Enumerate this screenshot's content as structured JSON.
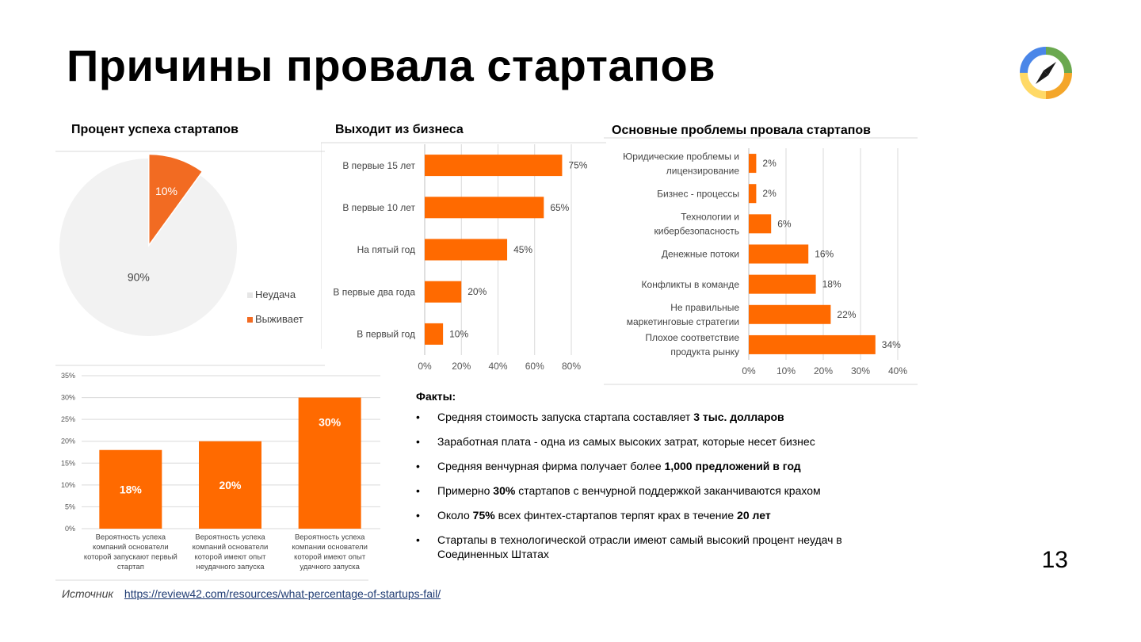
{
  "slide": {
    "title": "Причины провала стартапов",
    "page_number": "13",
    "source_label": "Источник",
    "source_url": "https://review42.com/resources/what-percentage-of-startups-fail/"
  },
  "chart_data": [
    {
      "id": "success",
      "type": "pie",
      "title": "Процент успеха стартапов",
      "slices": [
        {
          "name": "Неудача",
          "value": 90,
          "label": "90%",
          "color": "#f2f2f2"
        },
        {
          "name": "Выживает",
          "value": 10,
          "label": "10%",
          "color": "#f26b22"
        }
      ],
      "legend": "right"
    },
    {
      "id": "exit",
      "type": "bar",
      "orientation": "horizontal",
      "title": "Выходит из бизнеса",
      "categories": [
        "В первые 15 лет",
        "В первые 10 лет",
        "На пятый год",
        "В первые два года",
        "В первый год"
      ],
      "values": [
        75,
        65,
        45,
        20,
        10
      ],
      "labels": [
        "75%",
        "65%",
        "45%",
        "20%",
        "10%"
      ],
      "xlim": [
        0,
        80
      ],
      "xticks": [
        "0%",
        "20%",
        "40%",
        "60%",
        "80%"
      ],
      "grid": true,
      "color": "#ff6a00"
    },
    {
      "id": "problems",
      "type": "bar",
      "orientation": "horizontal",
      "title": "Основные проблемы провала стартапов",
      "categories": [
        [
          "Юридические проблемы и",
          "лицензирование"
        ],
        [
          "Бизнес - процессы"
        ],
        [
          "Технологии и",
          "кибербезопасность"
        ],
        [
          "Денежные потоки"
        ],
        [
          "Конфликты в команде"
        ],
        [
          "Не правильные",
          "маркетинговые стратегии"
        ],
        [
          "Плохое соответствие",
          "продукта рынку"
        ]
      ],
      "values": [
        2,
        2,
        6,
        16,
        18,
        22,
        34
      ],
      "labels": [
        "2%",
        "2%",
        "6%",
        "16%",
        "18%",
        "22%",
        "34%"
      ],
      "xlim": [
        0,
        40
      ],
      "xticks": [
        "0%",
        "10%",
        "20%",
        "30%",
        "40%"
      ],
      "grid": true,
      "color": "#ff6a00"
    },
    {
      "id": "founders",
      "type": "bar",
      "orientation": "vertical",
      "categories": [
        [
          "Вероятность успеха",
          "компаний основатели",
          "которой запускают первый",
          "стартап"
        ],
        [
          "Вероятность успеха",
          "компаний основатели",
          "которой имеют опыт",
          "неудачного запуска"
        ],
        [
          "Вероятность успеха",
          "компании основатели",
          "которой имеют опыт",
          "удачного запуска"
        ]
      ],
      "values": [
        18,
        20,
        30
      ],
      "labels": [
        "18%",
        "20%",
        "30%"
      ],
      "ylim": [
        0,
        35
      ],
      "yticks": [
        "0%",
        "5%",
        "10%",
        "15%",
        "20%",
        "25%",
        "30%",
        "35%"
      ],
      "grid": true,
      "color": "#ff6a00"
    }
  ],
  "facts": {
    "title": "Факты:",
    "bullet": "•",
    "items": [
      [
        {
          "t": "Средняя стоимость запуска стартапа составляет "
        },
        {
          "t": "3 тыс. долларов",
          "b": true
        }
      ],
      [
        {
          "t": "Заработная плата - одна из самых высоких затрат, которые несет бизнес"
        }
      ],
      [
        {
          "t": "Средняя венчурная фирма получает более "
        },
        {
          "t": "1,000 предложений в год",
          "b": true
        }
      ],
      [
        {
          "t": "Примерно "
        },
        {
          "t": "30%",
          "b": true
        },
        {
          "t": " стартапов с венчурной поддержкой заканчиваются крахом"
        }
      ],
      [
        {
          "t": "Около "
        },
        {
          "t": "75%",
          "b": true
        },
        {
          "t": " всех финтех-стартапов терпят крах в течение "
        },
        {
          "t": "20 лет",
          "b": true
        }
      ],
      [
        {
          "t": "Стартапы в технологической отрасли имеют самый высокий процент неудач в Соединенных Штатах"
        }
      ]
    ]
  },
  "logo": {
    "icon": "compass-icon",
    "colors": [
      "#4a86e8",
      "#6aa84f",
      "#f4a62a",
      "#ffd966"
    ]
  }
}
